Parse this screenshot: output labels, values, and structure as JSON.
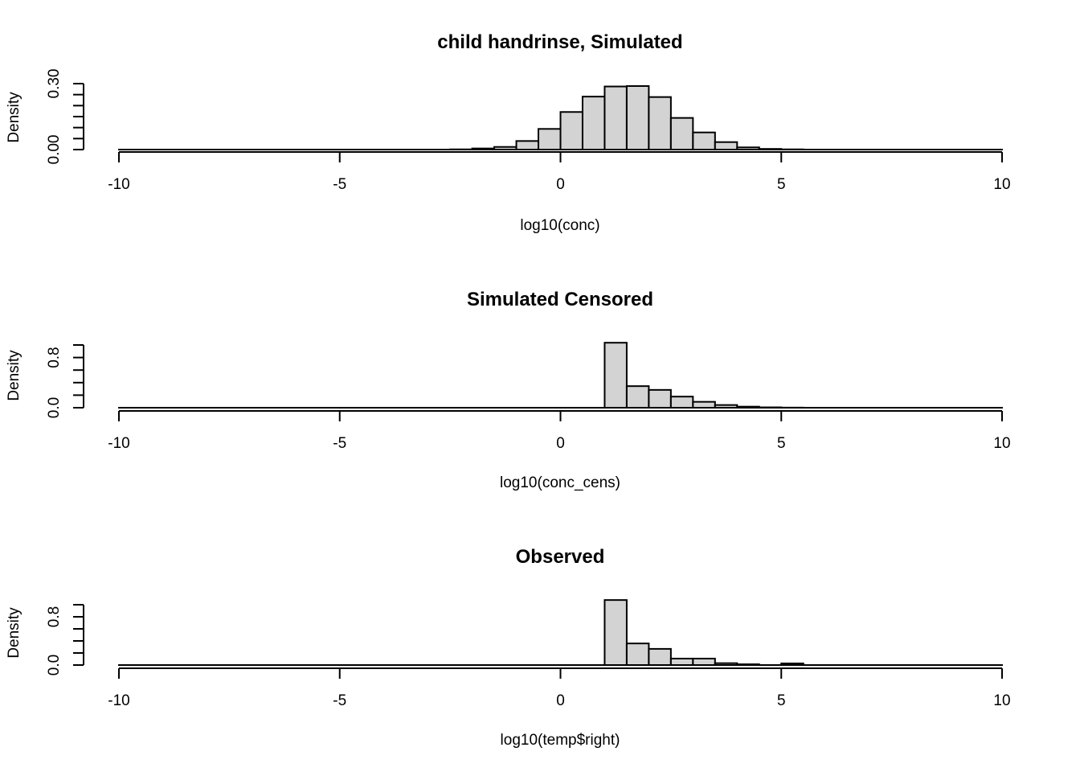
{
  "chart_data": [
    {
      "type": "bar",
      "title": "child handrinse, Simulated",
      "xlabel": "log10(conc)",
      "ylabel": "Density",
      "xlim": [
        -10,
        10
      ],
      "ylim": [
        0,
        0.3
      ],
      "bin_width": 0.5,
      "x_ticks": [
        -10,
        -5,
        0,
        5,
        10
      ],
      "y_ticks": [
        0,
        0.05,
        0.1,
        0.15,
        0.2,
        0.25,
        0.3
      ],
      "y_tick_labels": [
        "0.00",
        "",
        "",
        "",
        "",
        "",
        "0.30"
      ],
      "bins": [
        {
          "x0": -2.5,
          "x1": -2.0,
          "density": 0.001
        },
        {
          "x0": -2.0,
          "x1": -1.5,
          "density": 0.005
        },
        {
          "x0": -1.5,
          "x1": -1.0,
          "density": 0.012
        },
        {
          "x0": -1.0,
          "x1": -0.5,
          "density": 0.039
        },
        {
          "x0": -0.5,
          "x1": 0.0,
          "density": 0.094
        },
        {
          "x0": 0.0,
          "x1": 0.5,
          "density": 0.171
        },
        {
          "x0": 0.5,
          "x1": 1.0,
          "density": 0.241
        },
        {
          "x0": 1.0,
          "x1": 1.5,
          "density": 0.287
        },
        {
          "x0": 1.5,
          "x1": 2.0,
          "density": 0.289
        },
        {
          "x0": 2.0,
          "x1": 2.5,
          "density": 0.239
        },
        {
          "x0": 2.5,
          "x1": 3.0,
          "density": 0.144
        },
        {
          "x0": 3.0,
          "x1": 3.5,
          "density": 0.078
        },
        {
          "x0": 3.5,
          "x1": 4.0,
          "density": 0.034
        },
        {
          "x0": 4.0,
          "x1": 4.5,
          "density": 0.01
        },
        {
          "x0": 4.5,
          "x1": 5.0,
          "density": 0.003
        },
        {
          "x0": 5.0,
          "x1": 5.5,
          "density": 0.001
        }
      ]
    },
    {
      "type": "bar",
      "title": "Simulated Censored",
      "xlabel": "log10(conc_cens)",
      "ylabel": "Density",
      "xlim": [
        -10,
        10
      ],
      "ylim": [
        0,
        1.0
      ],
      "bin_width": 0.5,
      "x_ticks": [
        -10,
        -5,
        0,
        5,
        10
      ],
      "y_ticks": [
        0,
        0.2,
        0.4,
        0.6,
        0.8,
        1.0
      ],
      "y_tick_labels": [
        "0.0",
        "",
        "",
        "",
        "0.8",
        ""
      ],
      "bins": [
        {
          "x0": 1.0,
          "x1": 1.5,
          "density": 1.036
        },
        {
          "x0": 1.5,
          "x1": 2.0,
          "density": 0.344
        },
        {
          "x0": 2.0,
          "x1": 2.5,
          "density": 0.284
        },
        {
          "x0": 2.5,
          "x1": 3.0,
          "density": 0.177
        },
        {
          "x0": 3.0,
          "x1": 3.5,
          "density": 0.094
        },
        {
          "x0": 3.5,
          "x1": 4.0,
          "density": 0.043
        },
        {
          "x0": 4.0,
          "x1": 4.5,
          "density": 0.017
        },
        {
          "x0": 4.5,
          "x1": 5.0,
          "density": 0.006
        },
        {
          "x0": 5.0,
          "x1": 5.5,
          "density": 0.002
        }
      ]
    },
    {
      "type": "bar",
      "title": "Observed",
      "xlabel": "log10(temp$right)",
      "ylabel": "Density",
      "xlim": [
        -10,
        10
      ],
      "ylim": [
        0,
        1.0
      ],
      "bin_width": 0.5,
      "x_ticks": [
        -10,
        -5,
        0,
        5,
        10
      ],
      "y_ticks": [
        0,
        0.2,
        0.4,
        0.6,
        0.8,
        1.0
      ],
      "y_tick_labels": [
        "0.0",
        "",
        "",
        "",
        "0.8",
        ""
      ],
      "bins": [
        {
          "x0": 1.0,
          "x1": 1.5,
          "density": 1.078
        },
        {
          "x0": 1.5,
          "x1": 2.0,
          "density": 0.358
        },
        {
          "x0": 2.0,
          "x1": 2.5,
          "density": 0.268
        },
        {
          "x0": 2.5,
          "x1": 3.0,
          "density": 0.107
        },
        {
          "x0": 3.0,
          "x1": 3.5,
          "density": 0.107
        },
        {
          "x0": 3.5,
          "x1": 4.0,
          "density": 0.031
        },
        {
          "x0": 4.0,
          "x1": 4.5,
          "density": 0.013
        },
        {
          "x0": 4.5,
          "x1": 5.0,
          "density": 0.0
        },
        {
          "x0": 5.0,
          "x1": 5.5,
          "density": 0.027
        }
      ]
    }
  ]
}
